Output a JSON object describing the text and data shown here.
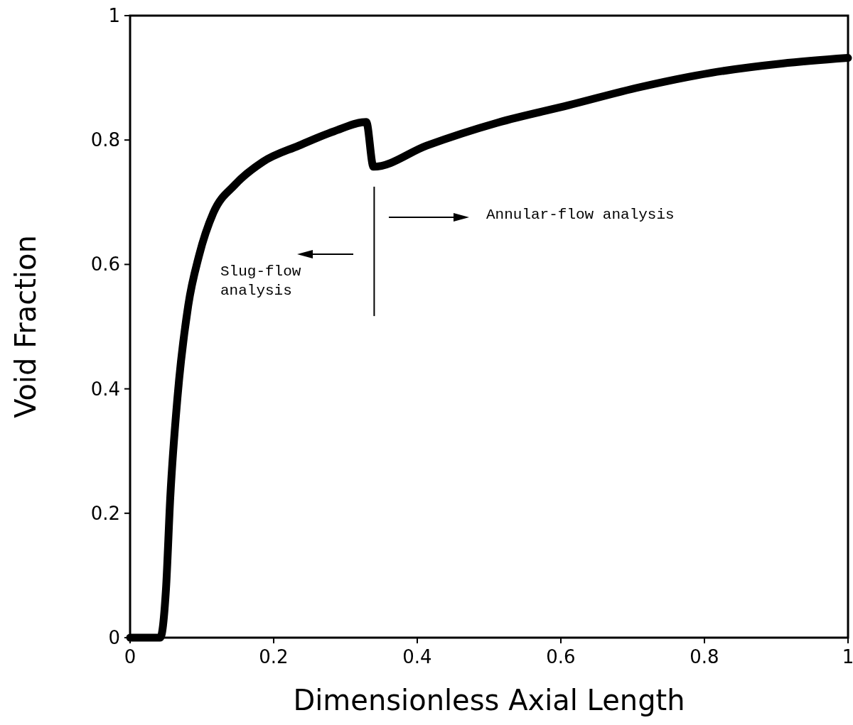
{
  "chart_data": {
    "type": "line",
    "xlabel": "Dimensionless Axial Length",
    "ylabel": "Void Fraction",
    "xlim": [
      0,
      1
    ],
    "ylim": [
      0,
      1
    ],
    "xticks": [
      0,
      0.2,
      0.4,
      0.6,
      0.8,
      1
    ],
    "yticks": [
      0,
      0.2,
      0.4,
      0.6,
      0.8,
      1
    ],
    "series": [
      {
        "color": "#000000",
        "x": [
          0,
          0.042,
          0.05,
          0.056,
          0.066,
          0.081,
          0.096,
          0.116,
          0.146,
          0.185,
          0.235,
          0.284,
          0.329,
          0.339,
          0.413,
          0.512,
          0.611,
          0.71,
          0.809,
          0.908,
          1
        ],
        "values": [
          0,
          0,
          0.078,
          0.226,
          0.386,
          0.534,
          0.614,
          0.683,
          0.728,
          0.765,
          0.791,
          0.814,
          0.829,
          0.757,
          0.791,
          0.828,
          0.856,
          0.885,
          0.908,
          0.923,
          0.932
        ]
      }
    ],
    "ref_lines": [
      {
        "axis": "x",
        "value": 0.34,
        "color": "#000000"
      }
    ],
    "annotations": [
      "Slug-flow\nanalysis",
      "Annular-flow analysis"
    ]
  }
}
